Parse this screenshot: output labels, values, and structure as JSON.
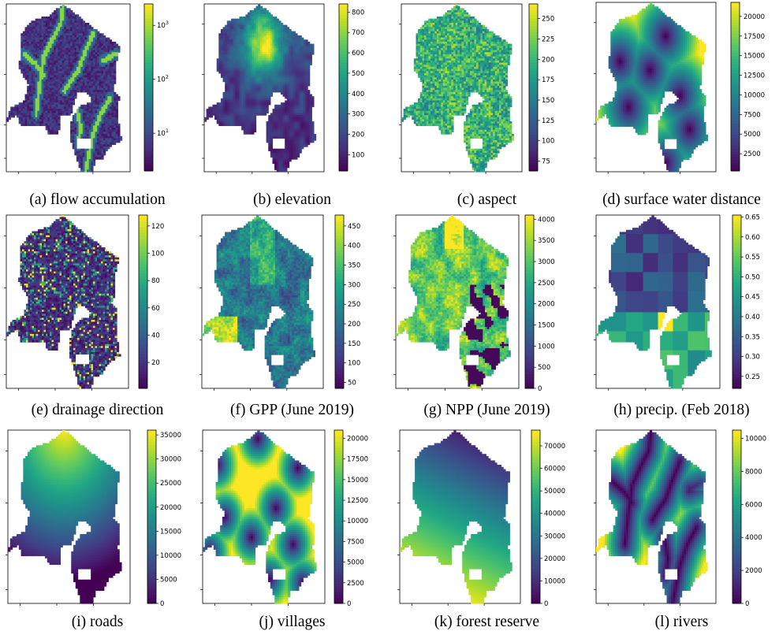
{
  "figure": {
    "panels": [
      {
        "id": "a",
        "caption": "(a) flow accumulation",
        "label_top": 256,
        "colorbar": {
          "scale": "log",
          "ticks": [
            {
              "v": 1000,
              "label": "10^3"
            },
            {
              "v": 100,
              "label": "10^2"
            },
            {
              "v": 10,
              "label": "10^1"
            }
          ],
          "range": [
            2,
            2500
          ]
        }
      },
      {
        "id": "b",
        "caption": "(b) elevation",
        "label_top": 256,
        "colorbar": {
          "scale": "linear",
          "ticks": [
            {
              "v": 800,
              "label": "800"
            },
            {
              "v": 700,
              "label": "700"
            },
            {
              "v": 600,
              "label": "600"
            },
            {
              "v": 500,
              "label": "500"
            },
            {
              "v": 400,
              "label": "400"
            },
            {
              "v": 300,
              "label": "300"
            },
            {
              "v": 200,
              "label": "200"
            },
            {
              "v": 100,
              "label": "100"
            }
          ],
          "range": [
            20,
            840
          ]
        }
      },
      {
        "id": "c",
        "caption": "(c) aspect",
        "label_top": 256,
        "colorbar": {
          "scale": "linear",
          "ticks": [
            {
              "v": 250,
              "label": "250"
            },
            {
              "v": 225,
              "label": "225"
            },
            {
              "v": 200,
              "label": "200"
            },
            {
              "v": 175,
              "label": "175"
            },
            {
              "v": 150,
              "label": "150"
            },
            {
              "v": 125,
              "label": "125"
            },
            {
              "v": 100,
              "label": "100"
            },
            {
              "v": 75,
              "label": "75"
            }
          ],
          "range": [
            63,
            268
          ]
        }
      },
      {
        "id": "d",
        "caption": "(d) surface water distance",
        "label_top": 256,
        "colorbar": {
          "scale": "linear",
          "ticks": [
            {
              "v": 20000,
              "label": "20000"
            },
            {
              "v": 17500,
              "label": "17500"
            },
            {
              "v": 15000,
              "label": "15000"
            },
            {
              "v": 12500,
              "label": "12500"
            },
            {
              "v": 10000,
              "label": "10000"
            },
            {
              "v": 7500,
              "label": "7500"
            },
            {
              "v": 5000,
              "label": "5000"
            },
            {
              "v": 2500,
              "label": "2500"
            }
          ],
          "range": [
            300,
            21800
          ]
        }
      },
      {
        "id": "e",
        "caption": "(e) drainage direction",
        "label_top": 521,
        "colorbar": {
          "scale": "linear",
          "ticks": [
            {
              "v": 120,
              "label": "120"
            },
            {
              "v": 100,
              "label": "100"
            },
            {
              "v": 80,
              "label": "80"
            },
            {
              "v": 60,
              "label": "60"
            },
            {
              "v": 40,
              "label": "40"
            },
            {
              "v": 20,
              "label": "20"
            }
          ],
          "range": [
            1,
            128
          ]
        }
      },
      {
        "id": "f",
        "caption": "(f) GPP (June 2019)",
        "label_top": 521,
        "colorbar": {
          "scale": "linear",
          "ticks": [
            {
              "v": 450,
              "label": "450"
            },
            {
              "v": 400,
              "label": "400"
            },
            {
              "v": 350,
              "label": "350"
            },
            {
              "v": 300,
              "label": "300"
            },
            {
              "v": 250,
              "label": "250"
            },
            {
              "v": 200,
              "label": "200"
            },
            {
              "v": 150,
              "label": "150"
            },
            {
              "v": 100,
              "label": "100"
            },
            {
              "v": 50,
              "label": "50"
            }
          ],
          "range": [
            35,
            478
          ]
        }
      },
      {
        "id": "g",
        "caption": "(g) NPP (June 2019)",
        "label_top": 521,
        "colorbar": {
          "scale": "linear",
          "ticks": [
            {
              "v": 4000,
              "label": "4000"
            },
            {
              "v": 3500,
              "label": "3500"
            },
            {
              "v": 3000,
              "label": "3000"
            },
            {
              "v": 2500,
              "label": "2500"
            },
            {
              "v": 2000,
              "label": "2000"
            },
            {
              "v": 1500,
              "label": "1500"
            },
            {
              "v": 1000,
              "label": "1000"
            },
            {
              "v": 500,
              "label": "500"
            },
            {
              "v": 0,
              "label": "0"
            }
          ],
          "range": [
            0,
            4100
          ]
        }
      },
      {
        "id": "h",
        "caption": "(h) precip. (Feb 2018)",
        "label_top": 521,
        "colorbar": {
          "scale": "linear",
          "ticks": [
            {
              "v": 0.65,
              "label": "0.65"
            },
            {
              "v": 0.6,
              "label": "0.60"
            },
            {
              "v": 0.55,
              "label": "0.55"
            },
            {
              "v": 0.5,
              "label": "0.50"
            },
            {
              "v": 0.45,
              "label": "0.45"
            },
            {
              "v": 0.4,
              "label": "0.40"
            },
            {
              "v": 0.35,
              "label": "0.35"
            },
            {
              "v": 0.3,
              "label": "0.30"
            },
            {
              "v": 0.25,
              "label": "0.25"
            }
          ],
          "range": [
            0.22,
            0.655
          ]
        }
      },
      {
        "id": "i",
        "caption": "(i) roads",
        "label_top": 785,
        "colorbar": {
          "scale": "linear",
          "ticks": [
            {
              "v": 35000,
              "label": "35000"
            },
            {
              "v": 30000,
              "label": "30000"
            },
            {
              "v": 25000,
              "label": "25000"
            },
            {
              "v": 20000,
              "label": "20000"
            },
            {
              "v": 15000,
              "label": "15000"
            },
            {
              "v": 10000,
              "label": "10000"
            },
            {
              "v": 5000,
              "label": "5000"
            },
            {
              "v": 0,
              "label": "0"
            }
          ],
          "range": [
            0,
            36000
          ]
        }
      },
      {
        "id": "j",
        "caption": "(j) villages",
        "label_top": 785,
        "colorbar": {
          "scale": "linear",
          "ticks": [
            {
              "v": 20000,
              "label": "20000"
            },
            {
              "v": 17500,
              "label": "17500"
            },
            {
              "v": 15000,
              "label": "15000"
            },
            {
              "v": 12500,
              "label": "12500"
            },
            {
              "v": 10000,
              "label": "10000"
            },
            {
              "v": 7500,
              "label": "7500"
            },
            {
              "v": 5000,
              "label": "5000"
            },
            {
              "v": 2500,
              "label": "2500"
            },
            {
              "v": 0,
              "label": "0"
            }
          ],
          "range": [
            0,
            21000
          ]
        }
      },
      {
        "id": "k",
        "caption": "(k) forest reserve",
        "label_top": 785,
        "colorbar": {
          "scale": "linear",
          "ticks": [
            {
              "v": 70000,
              "label": "70000"
            },
            {
              "v": 60000,
              "label": "60000"
            },
            {
              "v": 50000,
              "label": "50000"
            },
            {
              "v": 40000,
              "label": "40000"
            },
            {
              "v": 30000,
              "label": "30000"
            },
            {
              "v": 20000,
              "label": "20000"
            },
            {
              "v": 10000,
              "label": "10000"
            },
            {
              "v": 0,
              "label": "0"
            }
          ],
          "range": [
            0,
            77000
          ]
        }
      },
      {
        "id": "l",
        "caption": "(l) rivers",
        "label_top": 785,
        "colorbar": {
          "scale": "linear",
          "ticks": [
            {
              "v": 10000,
              "label": "10000"
            },
            {
              "v": 8000,
              "label": "8000"
            },
            {
              "v": 6000,
              "label": "6000"
            },
            {
              "v": 4000,
              "label": "4000"
            },
            {
              "v": 2000,
              "label": "2000"
            },
            {
              "v": 0,
              "label": "0"
            }
          ],
          "range": [
            0,
            10500
          ]
        }
      }
    ]
  },
  "chart_data": [
    {
      "type": "heatmap",
      "caption": "(a) flow accumulation",
      "colormap": "viridis",
      "colorbar_scale": "log",
      "colorbar_ticks": [
        "10^3",
        "10^2",
        "10^1"
      ]
    },
    {
      "type": "heatmap",
      "caption": "(b) elevation",
      "colormap": "viridis",
      "colorbar_ticks": [
        800,
        700,
        600,
        500,
        400,
        300,
        200,
        100
      ]
    },
    {
      "type": "heatmap",
      "caption": "(c) aspect",
      "colormap": "viridis",
      "colorbar_ticks": [
        250,
        225,
        200,
        175,
        150,
        125,
        100,
        75
      ]
    },
    {
      "type": "heatmap",
      "caption": "(d) surface water distance",
      "colormap": "viridis",
      "colorbar_ticks": [
        20000,
        17500,
        15000,
        12500,
        10000,
        7500,
        5000,
        2500
      ]
    },
    {
      "type": "heatmap",
      "caption": "(e) drainage direction",
      "colormap": "viridis",
      "colorbar_ticks": [
        120,
        100,
        80,
        60,
        40,
        20
      ]
    },
    {
      "type": "heatmap",
      "caption": "(f) GPP (June 2019)",
      "colormap": "viridis",
      "colorbar_ticks": [
        450,
        400,
        350,
        300,
        250,
        200,
        150,
        100,
        50
      ]
    },
    {
      "type": "heatmap",
      "caption": "(g) NPP (June 2019)",
      "colormap": "viridis",
      "colorbar_ticks": [
        4000,
        3500,
        3000,
        2500,
        2000,
        1500,
        1000,
        500,
        0
      ]
    },
    {
      "type": "heatmap",
      "caption": "(h) precip. (Feb 2018)",
      "colormap": "viridis",
      "colorbar_ticks": [
        0.65,
        0.6,
        0.55,
        0.5,
        0.45,
        0.4,
        0.35,
        0.3,
        0.25
      ]
    },
    {
      "type": "heatmap",
      "caption": "(i) roads",
      "colormap": "viridis",
      "colorbar_ticks": [
        35000,
        30000,
        25000,
        20000,
        15000,
        10000,
        5000,
        0
      ]
    },
    {
      "type": "heatmap",
      "caption": "(j) villages",
      "colormap": "viridis",
      "colorbar_ticks": [
        20000,
        17500,
        15000,
        12500,
        10000,
        7500,
        5000,
        2500,
        0
      ]
    },
    {
      "type": "heatmap",
      "caption": "(k) forest reserve",
      "colormap": "viridis",
      "colorbar_ticks": [
        70000,
        60000,
        50000,
        40000,
        30000,
        20000,
        10000,
        0
      ]
    },
    {
      "type": "heatmap",
      "caption": "(l) rivers",
      "colormap": "viridis",
      "colorbar_ticks": [
        10000,
        8000,
        6000,
        4000,
        2000,
        0
      ]
    }
  ]
}
